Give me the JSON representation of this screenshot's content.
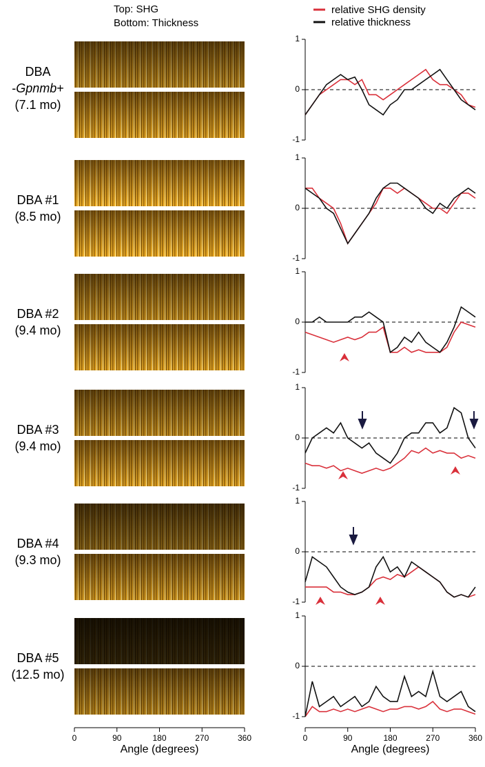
{
  "header": {
    "line1": "Top: SHG",
    "line2": "Bottom: Thickness"
  },
  "rows": [
    {
      "name": "DBA",
      "genotype": {
        "pre": "-",
        "italic": "Gpnmb",
        "post": "+"
      },
      "age": "(7.1 mo)"
    },
    {
      "name": "DBA #1",
      "age": "(8.5 mo)"
    },
    {
      "name": "DBA #2",
      "age": "(9.4 mo)"
    },
    {
      "name": "DBA #3",
      "age": "(9.4 mo)"
    },
    {
      "name": "DBA #4",
      "age": "(9.3 mo)"
    },
    {
      "name": "DBA #5",
      "age": "(12.5 mo)"
    }
  ],
  "image_axis": {
    "xlim": [
      0,
      360
    ],
    "xticks": [
      0,
      90,
      180,
      270,
      360
    ],
    "xlabel": "Angle (degrees)"
  },
  "chart_data": [
    {
      "type": "line",
      "xlim": [
        0,
        360
      ],
      "ylim": [
        -1,
        1
      ],
      "yticks": [
        1,
        0,
        -1
      ],
      "hline": 0,
      "x": [
        0,
        15,
        30,
        45,
        60,
        75,
        90,
        105,
        120,
        135,
        150,
        165,
        180,
        195,
        210,
        225,
        240,
        255,
        270,
        285,
        300,
        315,
        330,
        345,
        360
      ],
      "series": [
        {
          "name": "relative SHG density",
          "color": "#d9303a",
          "values": [
            -0.5,
            -0.3,
            -0.1,
            0.0,
            0.1,
            0.2,
            0.2,
            0.1,
            0.2,
            -0.1,
            -0.1,
            -0.2,
            -0.1,
            0.0,
            0.1,
            0.2,
            0.3,
            0.4,
            0.2,
            0.1,
            0.1,
            0.0,
            -0.1,
            -0.3,
            -0.35
          ]
        },
        {
          "name": "relative thickness",
          "color": "#111111",
          "values": [
            -0.5,
            -0.3,
            -0.1,
            0.1,
            0.2,
            0.3,
            0.2,
            0.25,
            0.0,
            -0.3,
            -0.4,
            -0.5,
            -0.3,
            -0.2,
            0.0,
            0.0,
            0.1,
            0.2,
            0.3,
            0.4,
            0.2,
            0.0,
            -0.2,
            -0.3,
            -0.4
          ]
        }
      ]
    },
    {
      "type": "line",
      "xlim": [
        0,
        360
      ],
      "ylim": [
        -1,
        1
      ],
      "yticks": [
        1,
        0,
        -1
      ],
      "hline": 0,
      "x": [
        0,
        15,
        30,
        45,
        60,
        75,
        90,
        105,
        120,
        135,
        150,
        165,
        180,
        195,
        210,
        225,
        240,
        255,
        270,
        285,
        300,
        315,
        330,
        345,
        360
      ],
      "series": [
        {
          "color": "#d9303a",
          "values": [
            0.4,
            0.4,
            0.2,
            0.1,
            0.0,
            -0.3,
            -0.7,
            -0.5,
            -0.3,
            -0.1,
            0.1,
            0.4,
            0.4,
            0.3,
            0.4,
            0.3,
            0.2,
            0.1,
            0.0,
            0.0,
            -0.1,
            0.1,
            0.3,
            0.3,
            0.2
          ]
        },
        {
          "color": "#111111",
          "values": [
            0.4,
            0.3,
            0.2,
            0.0,
            -0.1,
            -0.4,
            -0.7,
            -0.5,
            -0.3,
            -0.1,
            0.2,
            0.4,
            0.5,
            0.5,
            0.4,
            0.3,
            0.2,
            0.0,
            -0.1,
            0.1,
            0.0,
            0.2,
            0.3,
            0.4,
            0.3
          ]
        }
      ]
    },
    {
      "type": "line",
      "xlim": [
        0,
        360
      ],
      "ylim": [
        -1,
        1
      ],
      "yticks": [
        1,
        0,
        -1
      ],
      "hline": 0,
      "x": [
        0,
        15,
        30,
        45,
        60,
        75,
        90,
        105,
        120,
        135,
        150,
        165,
        180,
        195,
        210,
        225,
        240,
        255,
        270,
        285,
        300,
        315,
        330,
        345,
        360
      ],
      "series": [
        {
          "color": "#d9303a",
          "values": [
            -0.2,
            -0.25,
            -0.3,
            -0.35,
            -0.4,
            -0.35,
            -0.3,
            -0.35,
            -0.3,
            -0.2,
            -0.2,
            -0.1,
            -0.6,
            -0.6,
            -0.5,
            -0.6,
            -0.55,
            -0.6,
            -0.6,
            -0.6,
            -0.5,
            -0.2,
            0.0,
            -0.05,
            -0.1
          ]
        },
        {
          "color": "#111111",
          "values": [
            0.0,
            0.0,
            0.1,
            0.0,
            0.0,
            0.0,
            0.0,
            0.1,
            0.1,
            0.2,
            0.1,
            0.0,
            -0.6,
            -0.5,
            -0.3,
            -0.4,
            -0.2,
            -0.4,
            -0.5,
            -0.6,
            -0.4,
            -0.1,
            0.3,
            0.2,
            0.1
          ]
        }
      ]
    },
    {
      "type": "line",
      "xlim": [
        0,
        360
      ],
      "ylim": [
        -1,
        1
      ],
      "yticks": [
        1,
        0,
        -1
      ],
      "hline": 0,
      "x": [
        0,
        15,
        30,
        45,
        60,
        75,
        90,
        105,
        120,
        135,
        150,
        165,
        180,
        195,
        210,
        225,
        240,
        255,
        270,
        285,
        300,
        315,
        330,
        345,
        360
      ],
      "series": [
        {
          "color": "#d9303a",
          "values": [
            -0.5,
            -0.55,
            -0.55,
            -0.6,
            -0.55,
            -0.65,
            -0.6,
            -0.65,
            -0.7,
            -0.65,
            -0.6,
            -0.65,
            -0.6,
            -0.5,
            -0.4,
            -0.25,
            -0.3,
            -0.2,
            -0.3,
            -0.25,
            -0.3,
            -0.3,
            -0.4,
            -0.35,
            -0.4
          ]
        },
        {
          "color": "#111111",
          "values": [
            -0.3,
            0.0,
            0.1,
            0.2,
            0.1,
            0.3,
            0.0,
            -0.1,
            -0.2,
            -0.1,
            -0.3,
            -0.4,
            -0.5,
            -0.3,
            0.0,
            0.1,
            0.1,
            0.3,
            0.3,
            0.1,
            0.2,
            0.6,
            0.5,
            0.0,
            -0.2
          ]
        }
      ]
    },
    {
      "type": "line",
      "xlim": [
        0,
        360
      ],
      "ylim": [
        -1,
        1
      ],
      "yticks": [
        1,
        0,
        -1
      ],
      "hline": 0,
      "x": [
        0,
        15,
        30,
        45,
        60,
        75,
        90,
        105,
        120,
        135,
        150,
        165,
        180,
        195,
        210,
        225,
        240,
        255,
        270,
        285,
        300,
        315,
        330,
        345,
        360
      ],
      "series": [
        {
          "color": "#d9303a",
          "values": [
            -0.7,
            -0.7,
            -0.7,
            -0.7,
            -0.8,
            -0.8,
            -0.85,
            -0.85,
            -0.8,
            -0.7,
            -0.55,
            -0.5,
            -0.55,
            -0.45,
            -0.5,
            -0.4,
            -0.3,
            -0.4,
            -0.5,
            -0.6,
            -0.8,
            -0.9,
            -0.85,
            -0.9,
            -0.85
          ]
        },
        {
          "color": "#111111",
          "values": [
            -0.6,
            -0.1,
            -0.2,
            -0.3,
            -0.5,
            -0.7,
            -0.8,
            -0.85,
            -0.8,
            -0.7,
            -0.3,
            -0.1,
            -0.4,
            -0.3,
            -0.5,
            -0.2,
            -0.3,
            -0.4,
            -0.5,
            -0.6,
            -0.8,
            -0.9,
            -0.85,
            -0.9,
            -0.7
          ]
        }
      ]
    },
    {
      "type": "line",
      "xlim": [
        0,
        360
      ],
      "ylim": [
        -1,
        1
      ],
      "yticks": [
        1,
        0,
        -1
      ],
      "hline": 0,
      "xticks": [
        0,
        90,
        180,
        270,
        360
      ],
      "xlabel": "Angle (degrees)",
      "x": [
        0,
        15,
        30,
        45,
        60,
        75,
        90,
        105,
        120,
        135,
        150,
        165,
        180,
        195,
        210,
        225,
        240,
        255,
        270,
        285,
        300,
        315,
        330,
        345,
        360
      ],
      "series": [
        {
          "color": "#d9303a",
          "values": [
            -1.0,
            -0.8,
            -0.9,
            -0.9,
            -0.85,
            -0.9,
            -0.85,
            -0.9,
            -0.85,
            -0.8,
            -0.85,
            -0.9,
            -0.85,
            -0.85,
            -0.8,
            -0.8,
            -0.85,
            -0.8,
            -0.7,
            -0.85,
            -0.9,
            -0.85,
            -0.85,
            -0.9,
            -0.95
          ]
        },
        {
          "color": "#111111",
          "values": [
            -1.0,
            -0.3,
            -0.8,
            -0.7,
            -0.6,
            -0.8,
            -0.7,
            -0.6,
            -0.8,
            -0.7,
            -0.4,
            -0.6,
            -0.7,
            -0.7,
            -0.2,
            -0.6,
            -0.5,
            -0.6,
            -0.1,
            -0.6,
            -0.7,
            -0.6,
            -0.5,
            -0.8,
            -0.9
          ]
        }
      ]
    }
  ]
}
